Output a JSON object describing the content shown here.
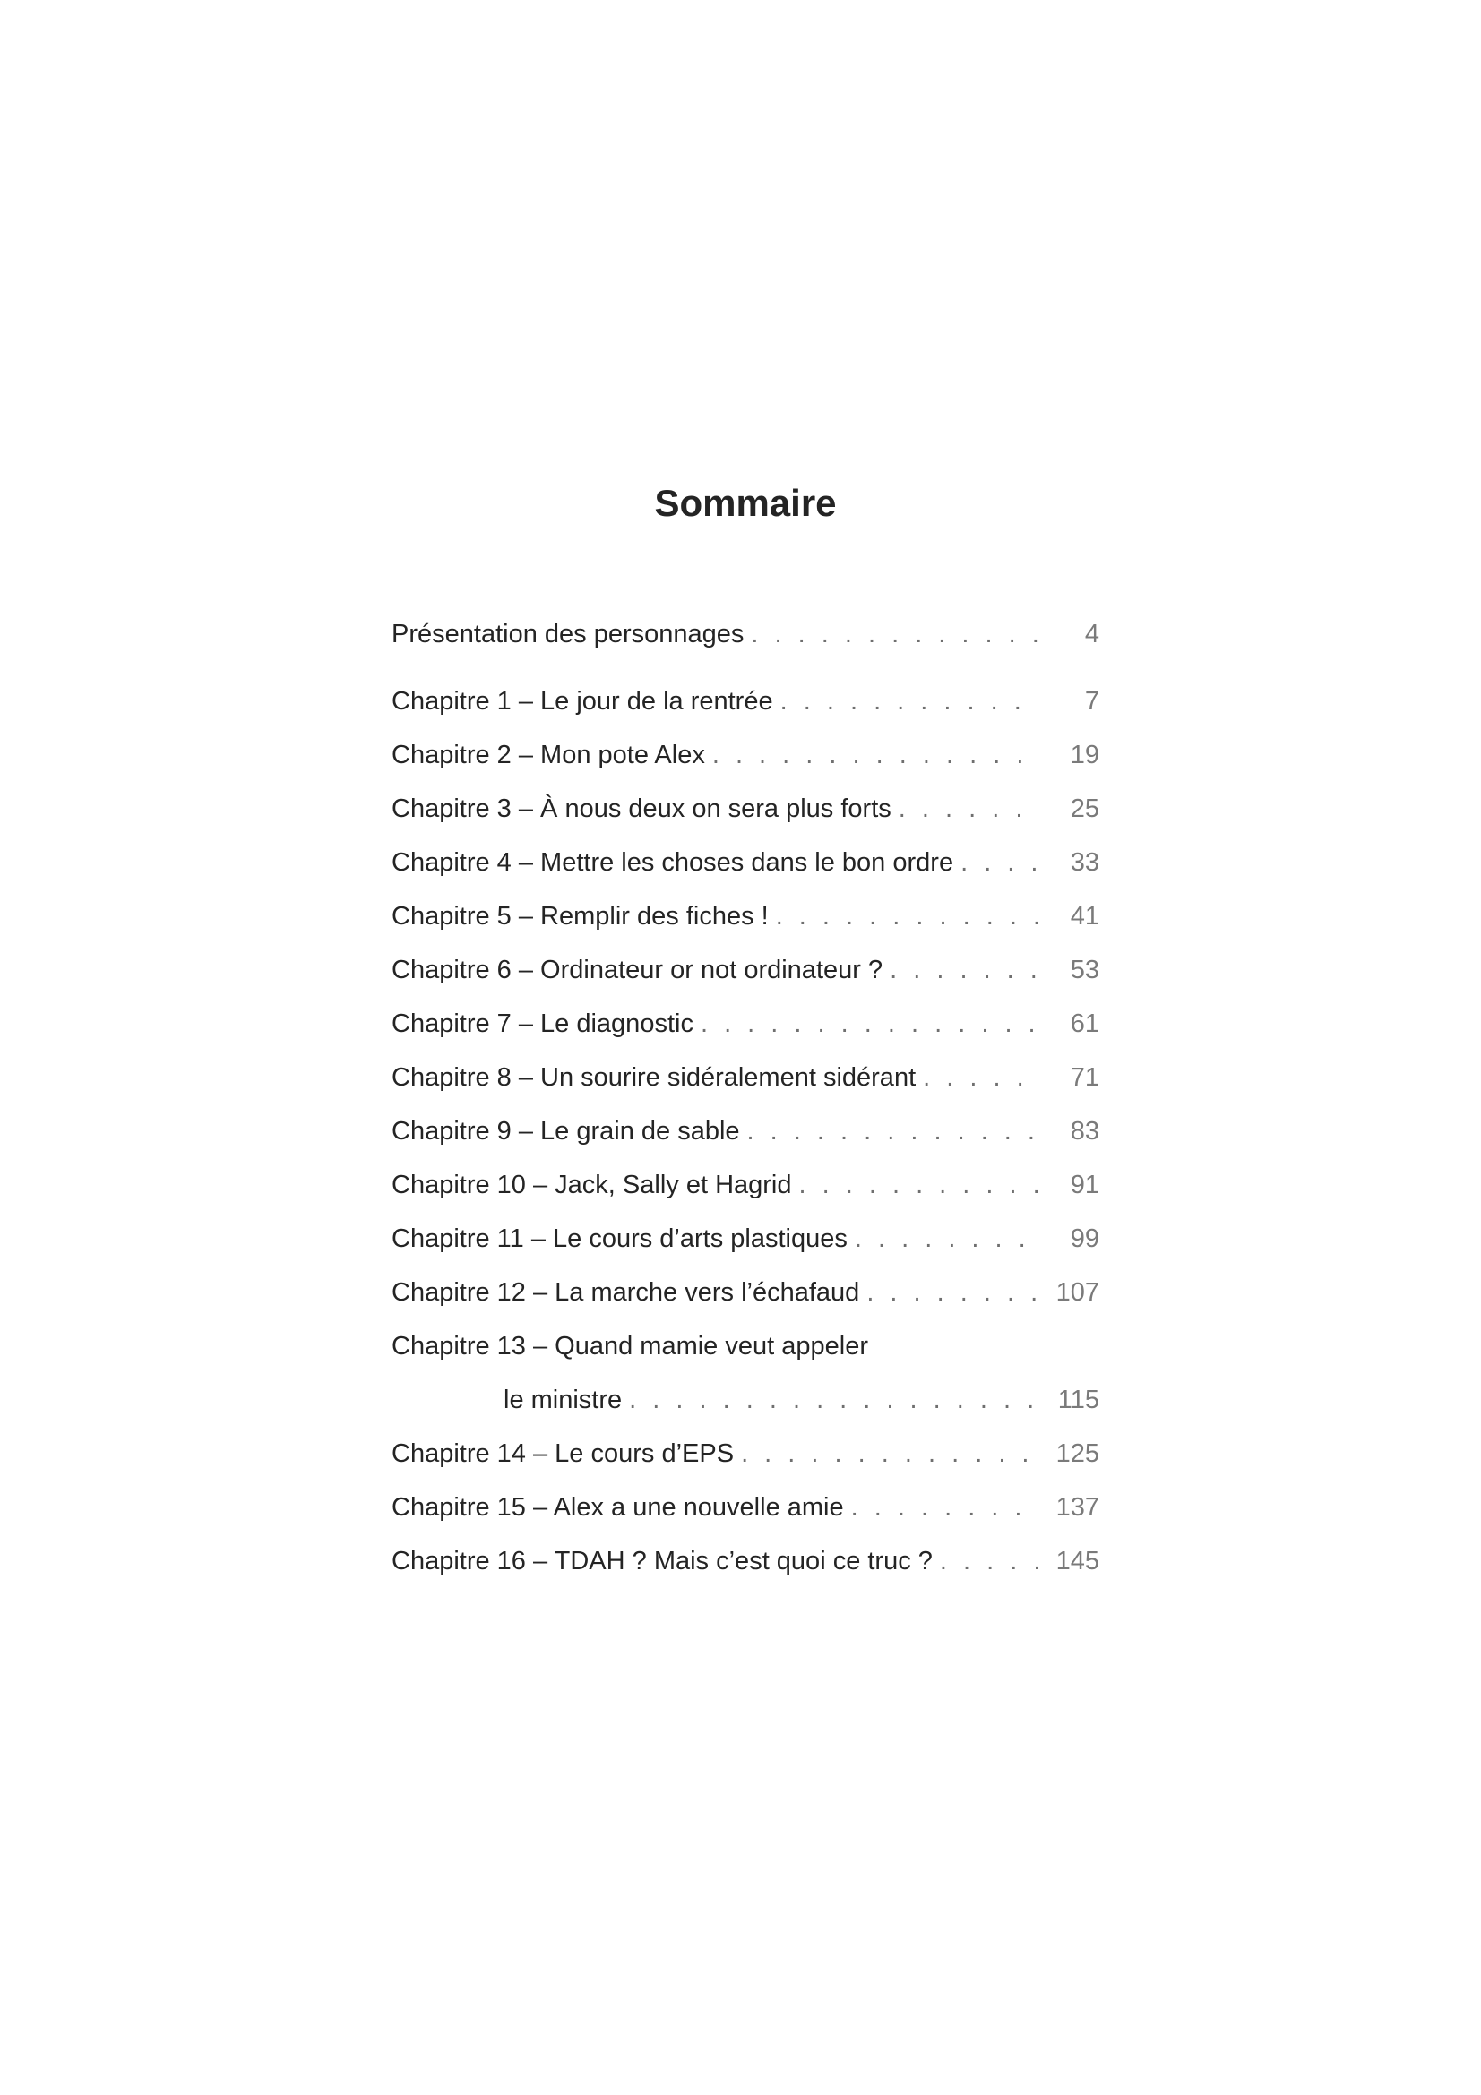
{
  "page": {
    "title": "Sommaire",
    "toc": {
      "entries": [
        {
          "label": "Présentation des personnages",
          "page": "4"
        },
        {
          "label": "Chapitre 1 – Le jour de la rentrée",
          "page": "7"
        },
        {
          "label": "Chapitre 2 – Mon pote Alex",
          "page": "19"
        },
        {
          "label": "Chapitre 3 – À nous deux on sera plus forts",
          "page": "25"
        },
        {
          "label": "Chapitre 4 – Mettre les choses dans le bon ordre",
          "page": "33"
        },
        {
          "label": "Chapitre 5 – Remplir des fiches !",
          "page": "41"
        },
        {
          "label": "Chapitre 6 – Ordinateur or not ordinateur ?",
          "page": "53"
        },
        {
          "label": "Chapitre 7 – Le diagnostic",
          "page": "61"
        },
        {
          "label": "Chapitre 8 – Un sourire sidéralement sidérant",
          "page": "71"
        },
        {
          "label": "Chapitre 9 – Le grain de sable",
          "page": "83"
        },
        {
          "label": "Chapitre 10 – Jack, Sally et Hagrid",
          "page": "91"
        },
        {
          "label": "Chapitre 11 – Le cours d’arts plastiques",
          "page": "99"
        },
        {
          "label": "Chapitre 12 – La marche vers l’échafaud",
          "page": "107"
        },
        {
          "label": "Chapitre 13 – Quand mamie veut appeler",
          "label2": "le ministre",
          "page": "115"
        },
        {
          "label": "Chapitre 14 – Le cours d’EPS",
          "page": "125"
        },
        {
          "label": "Chapitre 15 – Alex a une nouvelle amie",
          "page": "137"
        },
        {
          "label": "Chapitre 16 – TDAH ? Mais c’est quoi ce truc ?",
          "page": "145"
        }
      ]
    }
  }
}
